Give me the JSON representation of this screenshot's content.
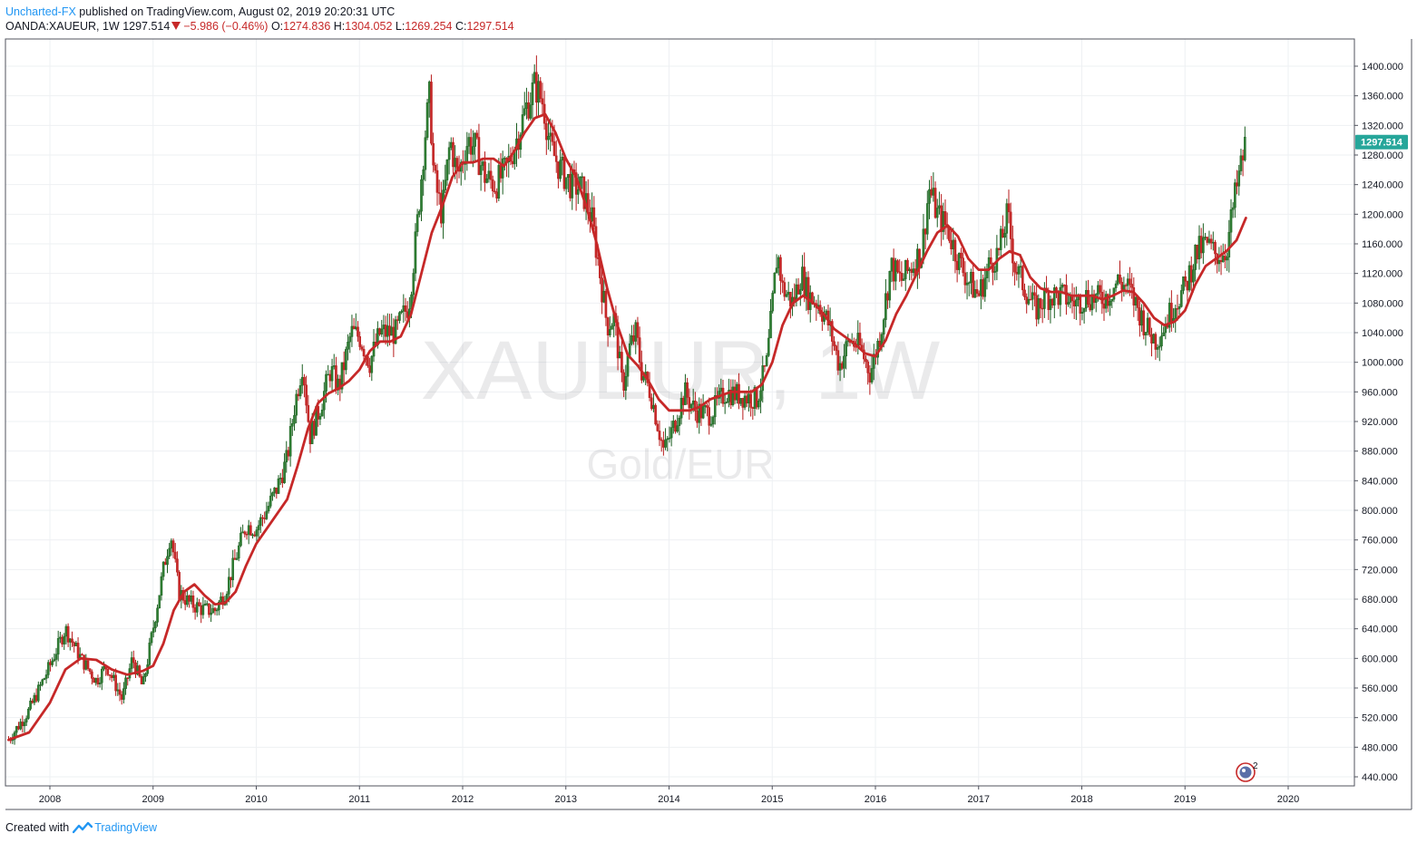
{
  "header": {
    "author": "Uncharted-FX",
    "published_text": "published on TradingView.com, August 02, 2019 20:20:31 UTC",
    "symbol": "OANDA:XAUEUR, 1W",
    "last": "1297.514",
    "change": "−5.986 (−0.46%)",
    "open_label": "O:",
    "open": "1274.836",
    "high_label": "H:",
    "high": "1304.052",
    "low_label": "L:",
    "low": "1269.254",
    "close_label": "C:",
    "close": "1297.514"
  },
  "watermark": {
    "symbol": "XAUEUR, 1W",
    "description": "Gold/EUR"
  },
  "footer": {
    "created_with": "Created with",
    "brand": "TradingView"
  },
  "badge": {
    "count": "2"
  },
  "colors": {
    "up": "#1b5e20",
    "down": "#b71c1c",
    "ma": "#c62828",
    "price_label_bg": "#26a69a",
    "grid": "#eef0f3",
    "axis_text": "#131722",
    "brand": "#2196f3"
  },
  "chart_data": {
    "type": "candlestick",
    "timeframe": "1W",
    "ylim": [
      430,
      1430
    ],
    "y_ticks": [
      440,
      480,
      520,
      560,
      600,
      640,
      680,
      720,
      760,
      800,
      840,
      880,
      920,
      960,
      1000,
      1040,
      1080,
      1120,
      1160,
      1200,
      1240,
      1280,
      1320,
      1360,
      1400
    ],
    "y_tick_labels": [
      "440.000",
      "480.000",
      "520.000",
      "560.000",
      "600.000",
      "640.000",
      "680.000",
      "720.000",
      "760.000",
      "800.000",
      "840.000",
      "880.000",
      "920.000",
      "960.000",
      "1000.000",
      "1040.000",
      "1080.000",
      "1120.000",
      "1160.000",
      "1200.000",
      "1240.000",
      "1280.000",
      "1320.000",
      "1360.000",
      "1400.000"
    ],
    "x_range": [
      2007.6,
      2020.7
    ],
    "x_ticks": [
      "2008",
      "2009",
      "2010",
      "2011",
      "2012",
      "2013",
      "2014",
      "2015",
      "2016",
      "2017",
      "2018",
      "2019",
      "2020"
    ],
    "last_price": 1297.514,
    "last_price_label": "1297.514",
    "price_path": [
      [
        2007.6,
        490
      ],
      [
        2007.8,
        530
      ],
      [
        2008.0,
        590
      ],
      [
        2008.15,
        640
      ],
      [
        2008.3,
        600
      ],
      [
        2008.45,
        570
      ],
      [
        2008.55,
        590
      ],
      [
        2008.7,
        545
      ],
      [
        2008.8,
        600
      ],
      [
        2008.9,
        560
      ],
      [
        2009.0,
        640
      ],
      [
        2009.1,
        720
      ],
      [
        2009.17,
        770
      ],
      [
        2009.25,
        690
      ],
      [
        2009.35,
        675
      ],
      [
        2009.5,
        665
      ],
      [
        2009.6,
        665
      ],
      [
        2009.7,
        690
      ],
      [
        2009.8,
        735
      ],
      [
        2009.9,
        780
      ],
      [
        2010.0,
        775
      ],
      [
        2010.1,
        800
      ],
      [
        2010.2,
        830
      ],
      [
        2010.3,
        870
      ],
      [
        2010.37,
        940
      ],
      [
        2010.45,
        1000
      ],
      [
        2010.52,
        900
      ],
      [
        2010.62,
        940
      ],
      [
        2010.72,
        990
      ],
      [
        2010.8,
        965
      ],
      [
        2010.92,
        1040
      ],
      [
        2011.0,
        1035
      ],
      [
        2011.1,
        1000
      ],
      [
        2011.2,
        1040
      ],
      [
        2011.35,
        1040
      ],
      [
        2011.48,
        1080
      ],
      [
        2011.55,
        1170
      ],
      [
        2011.63,
        1300
      ],
      [
        2011.68,
        1360
      ],
      [
        2011.72,
        1250
      ],
      [
        2011.8,
        1200
      ],
      [
        2011.88,
        1300
      ],
      [
        2011.95,
        1250
      ],
      [
        2012.05,
        1300
      ],
      [
        2012.12,
        1290
      ],
      [
        2012.22,
        1250
      ],
      [
        2012.32,
        1240
      ],
      [
        2012.42,
        1260
      ],
      [
        2012.52,
        1300
      ],
      [
        2012.62,
        1345
      ],
      [
        2012.7,
        1375
      ],
      [
        2012.78,
        1350
      ],
      [
        2012.85,
        1290
      ],
      [
        2012.95,
        1260
      ],
      [
        2013.05,
        1240
      ],
      [
        2013.15,
        1235
      ],
      [
        2013.25,
        1195
      ],
      [
        2013.32,
        1130
      ],
      [
        2013.4,
        1050
      ],
      [
        2013.47,
        1060
      ],
      [
        2013.55,
        965
      ],
      [
        2013.62,
        1020
      ],
      [
        2013.68,
        1040
      ],
      [
        2013.73,
        990
      ],
      [
        2013.82,
        960
      ],
      [
        2013.9,
        910
      ],
      [
        2013.95,
        880
      ],
      [
        2014.05,
        915
      ],
      [
        2014.15,
        960
      ],
      [
        2014.25,
        935
      ],
      [
        2014.4,
        930
      ],
      [
        2014.55,
        960
      ],
      [
        2014.7,
        955
      ],
      [
        2014.85,
        950
      ],
      [
        2014.95,
        1000
      ],
      [
        2015.05,
        1150
      ],
      [
        2015.1,
        1100
      ],
      [
        2015.2,
        1080
      ],
      [
        2015.28,
        1120
      ],
      [
        2015.35,
        1090
      ],
      [
        2015.45,
        1080
      ],
      [
        2015.55,
        1050
      ],
      [
        2015.65,
        995
      ],
      [
        2015.75,
        1030
      ],
      [
        2015.85,
        1020
      ],
      [
        2015.95,
        985
      ],
      [
        2016.05,
        1040
      ],
      [
        2016.15,
        1130
      ],
      [
        2016.25,
        1110
      ],
      [
        2016.35,
        1130
      ],
      [
        2016.45,
        1150
      ],
      [
        2016.52,
        1235
      ],
      [
        2016.6,
        1200
      ],
      [
        2016.7,
        1180
      ],
      [
        2016.8,
        1140
      ],
      [
        2016.9,
        1110
      ],
      [
        2017.0,
        1090
      ],
      [
        2017.1,
        1130
      ],
      [
        2017.2,
        1150
      ],
      [
        2017.28,
        1200
      ],
      [
        2017.35,
        1130
      ],
      [
        2017.45,
        1100
      ],
      [
        2017.55,
        1070
      ],
      [
        2017.65,
        1090
      ],
      [
        2017.8,
        1090
      ],
      [
        2017.95,
        1080
      ],
      [
        2018.05,
        1090
      ],
      [
        2018.15,
        1085
      ],
      [
        2018.25,
        1090
      ],
      [
        2018.35,
        1110
      ],
      [
        2018.45,
        1100
      ],
      [
        2018.55,
        1070
      ],
      [
        2018.65,
        1040
      ],
      [
        2018.72,
        1030
      ],
      [
        2018.8,
        1050
      ],
      [
        2018.9,
        1080
      ],
      [
        2019.0,
        1100
      ],
      [
        2019.1,
        1145
      ],
      [
        2019.2,
        1160
      ],
      [
        2019.3,
        1145
      ],
      [
        2019.4,
        1150
      ],
      [
        2019.48,
        1220
      ],
      [
        2019.55,
        1270
      ],
      [
        2019.59,
        1297.5
      ]
    ],
    "ma_path": [
      [
        2007.6,
        490
      ],
      [
        2007.8,
        500
      ],
      [
        2008.0,
        540
      ],
      [
        2008.15,
        585
      ],
      [
        2008.3,
        600
      ],
      [
        2008.45,
        598
      ],
      [
        2008.6,
        585
      ],
      [
        2008.75,
        578
      ],
      [
        2008.9,
        583
      ],
      [
        2009.0,
        590
      ],
      [
        2009.1,
        620
      ],
      [
        2009.2,
        665
      ],
      [
        2009.3,
        690
      ],
      [
        2009.4,
        700
      ],
      [
        2009.5,
        685
      ],
      [
        2009.6,
        673
      ],
      [
        2009.7,
        675
      ],
      [
        2009.8,
        690
      ],
      [
        2009.9,
        725
      ],
      [
        2010.0,
        755
      ],
      [
        2010.1,
        775
      ],
      [
        2010.2,
        795
      ],
      [
        2010.3,
        815
      ],
      [
        2010.4,
        860
      ],
      [
        2010.5,
        910
      ],
      [
        2010.6,
        945
      ],
      [
        2010.7,
        958
      ],
      [
        2010.8,
        965
      ],
      [
        2010.9,
        975
      ],
      [
        2011.0,
        990
      ],
      [
        2011.1,
        1015
      ],
      [
        2011.2,
        1028
      ],
      [
        2011.3,
        1028
      ],
      [
        2011.4,
        1035
      ],
      [
        2011.5,
        1065
      ],
      [
        2011.6,
        1120
      ],
      [
        2011.7,
        1175
      ],
      [
        2011.8,
        1210
      ],
      [
        2011.9,
        1250
      ],
      [
        2012.0,
        1270
      ],
      [
        2012.1,
        1270
      ],
      [
        2012.2,
        1275
      ],
      [
        2012.3,
        1275
      ],
      [
        2012.4,
        1265
      ],
      [
        2012.5,
        1285
      ],
      [
        2012.6,
        1310
      ],
      [
        2012.7,
        1330
      ],
      [
        2012.8,
        1335
      ],
      [
        2012.9,
        1310
      ],
      [
        2013.0,
        1275
      ],
      [
        2013.1,
        1250
      ],
      [
        2013.2,
        1210
      ],
      [
        2013.3,
        1160
      ],
      [
        2013.4,
        1100
      ],
      [
        2013.5,
        1050
      ],
      [
        2013.6,
        1010
      ],
      [
        2013.7,
        995
      ],
      [
        2013.8,
        975
      ],
      [
        2013.9,
        950
      ],
      [
        2014.0,
        935
      ],
      [
        2014.1,
        935
      ],
      [
        2014.2,
        935
      ],
      [
        2014.3,
        940
      ],
      [
        2014.4,
        950
      ],
      [
        2014.5,
        955
      ],
      [
        2014.6,
        960
      ],
      [
        2014.7,
        960
      ],
      [
        2014.8,
        960
      ],
      [
        2014.9,
        970
      ],
      [
        2015.0,
        1000
      ],
      [
        2015.1,
        1050
      ],
      [
        2015.2,
        1080
      ],
      [
        2015.3,
        1090
      ],
      [
        2015.4,
        1080
      ],
      [
        2015.5,
        1065
      ],
      [
        2015.6,
        1045
      ],
      [
        2015.7,
        1035
      ],
      [
        2015.8,
        1025
      ],
      [
        2015.9,
        1012
      ],
      [
        2016.0,
        1008
      ],
      [
        2016.1,
        1030
      ],
      [
        2016.2,
        1065
      ],
      [
        2016.3,
        1090
      ],
      [
        2016.4,
        1120
      ],
      [
        2016.5,
        1150
      ],
      [
        2016.6,
        1175
      ],
      [
        2016.7,
        1185
      ],
      [
        2016.8,
        1170
      ],
      [
        2016.9,
        1140
      ],
      [
        2017.0,
        1125
      ],
      [
        2017.1,
        1125
      ],
      [
        2017.2,
        1140
      ],
      [
        2017.3,
        1150
      ],
      [
        2017.4,
        1145
      ],
      [
        2017.5,
        1115
      ],
      [
        2017.6,
        1100
      ],
      [
        2017.7,
        1095
      ],
      [
        2017.8,
        1095
      ],
      [
        2017.9,
        1090
      ],
      [
        2018.0,
        1090
      ],
      [
        2018.1,
        1090
      ],
      [
        2018.2,
        1085
      ],
      [
        2018.3,
        1090
      ],
      [
        2018.4,
        1097
      ],
      [
        2018.5,
        1095
      ],
      [
        2018.6,
        1080
      ],
      [
        2018.7,
        1060
      ],
      [
        2018.8,
        1050
      ],
      [
        2018.9,
        1055
      ],
      [
        2019.0,
        1070
      ],
      [
        2019.1,
        1105
      ],
      [
        2019.2,
        1130
      ],
      [
        2019.3,
        1140
      ],
      [
        2019.4,
        1150
      ],
      [
        2019.5,
        1165
      ],
      [
        2019.59,
        1195
      ]
    ]
  }
}
